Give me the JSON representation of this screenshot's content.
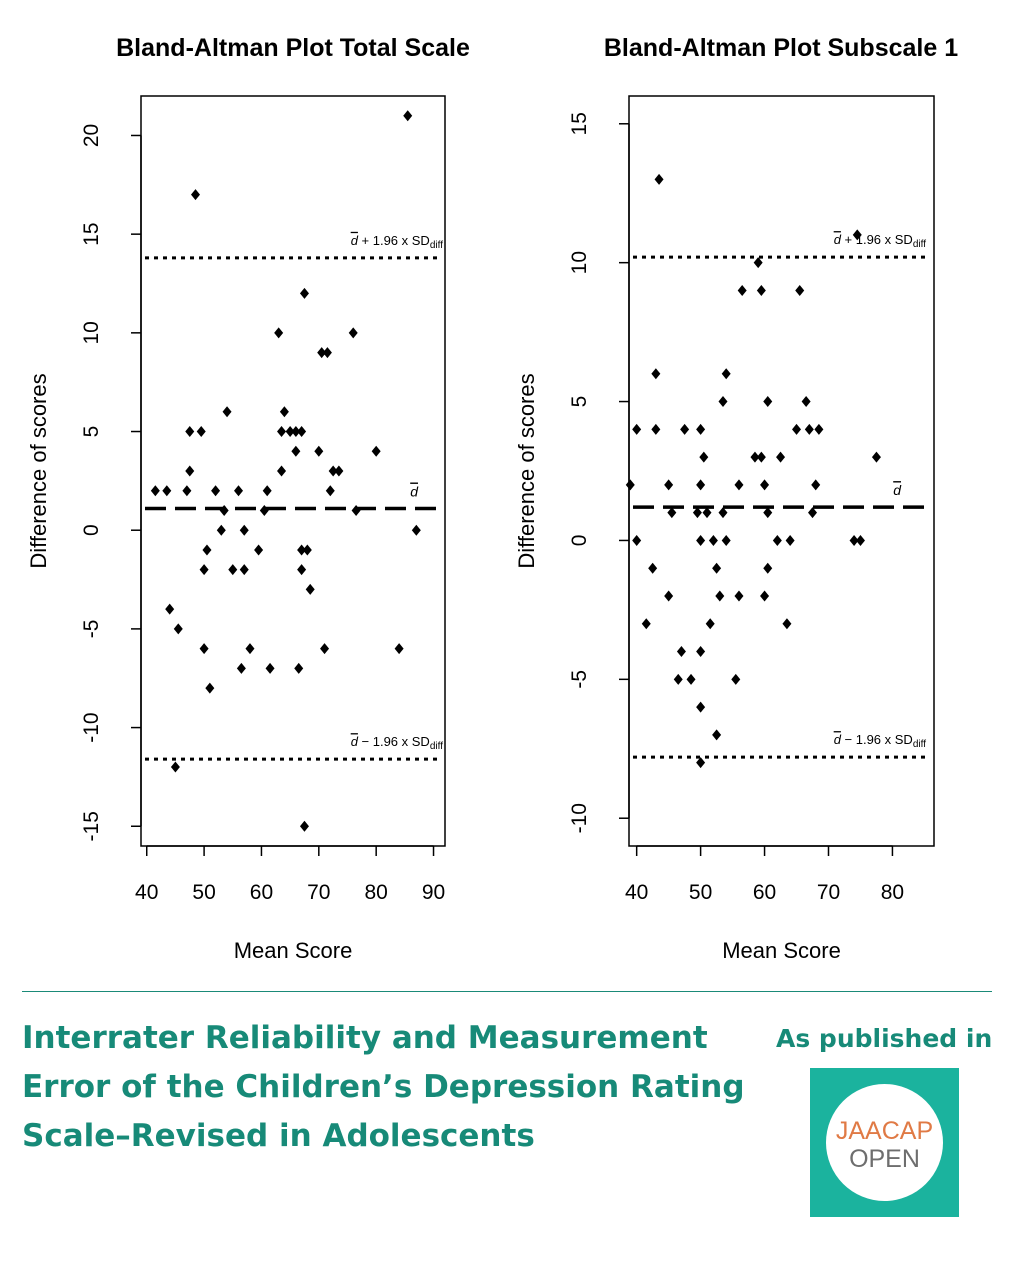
{
  "chart_data": [
    {
      "type": "scatter",
      "title": "Bland-Altman Plot Total Scale",
      "xlabel": "Mean Score",
      "ylabel": "Difference of scores",
      "xlim": [
        39,
        92
      ],
      "ylim": [
        -16,
        22
      ],
      "xticks": [
        "40",
        "50",
        "60",
        "70",
        "80",
        "90"
      ],
      "yticks": [
        "-15",
        "-10",
        "-5",
        "0",
        "5",
        "10",
        "15",
        "20"
      ],
      "grid": false,
      "mean_line": {
        "value": 1.1,
        "label": "d"
      },
      "upper_loa": {
        "value": 13.8,
        "label_prefix": "d",
        "label_mid": " + 1.96 x SD",
        "label_sub": "diff"
      },
      "lower_loa": {
        "value": -11.6,
        "label_prefix": "d",
        "label_mid": " − 1.96 x SD",
        "label_sub": "diff"
      },
      "points": [
        [
          41.5,
          2
        ],
        [
          43.5,
          2
        ],
        [
          44,
          -4
        ],
        [
          45,
          -12
        ],
        [
          45.5,
          -5
        ],
        [
          47,
          2
        ],
        [
          47.5,
          3
        ],
        [
          47.5,
          5
        ],
        [
          48.5,
          17
        ],
        [
          49.5,
          5
        ],
        [
          50,
          -2
        ],
        [
          50,
          -6
        ],
        [
          50.5,
          -1
        ],
        [
          51,
          -8
        ],
        [
          52,
          2
        ],
        [
          53,
          0
        ],
        [
          53.5,
          1
        ],
        [
          54,
          6
        ],
        [
          55,
          -2
        ],
        [
          56,
          2
        ],
        [
          56.5,
          -7
        ],
        [
          57,
          -2
        ],
        [
          57,
          0
        ],
        [
          58,
          -6
        ],
        [
          59.5,
          -1
        ],
        [
          60.5,
          1
        ],
        [
          61,
          2
        ],
        [
          61.5,
          -7
        ],
        [
          63,
          10
        ],
        [
          63.5,
          3
        ],
        [
          63.5,
          5
        ],
        [
          64,
          6
        ],
        [
          65,
          5
        ],
        [
          66,
          5
        ],
        [
          66,
          4
        ],
        [
          66.5,
          -7
        ],
        [
          67,
          5
        ],
        [
          67,
          -1
        ],
        [
          67,
          -2
        ],
        [
          67.5,
          12
        ],
        [
          67.5,
          -15
        ],
        [
          68,
          -1
        ],
        [
          68.5,
          -3
        ],
        [
          70,
          4
        ],
        [
          70.5,
          9
        ],
        [
          71,
          -6
        ],
        [
          71.5,
          9
        ],
        [
          72,
          2
        ],
        [
          72.5,
          3
        ],
        [
          73.5,
          3
        ],
        [
          76,
          10
        ],
        [
          76.5,
          1
        ],
        [
          80,
          4
        ],
        [
          84,
          -6
        ],
        [
          85.5,
          21
        ],
        [
          87,
          0
        ]
      ]
    },
    {
      "type": "scatter",
      "title": "Bland-Altman Plot Subscale 1",
      "xlabel": "Mean Score",
      "ylabel": "Difference of scores",
      "xlim": [
        38.8,
        86.5
      ],
      "ylim": [
        -11,
        16
      ],
      "xticks": [
        "40",
        "50",
        "60",
        "70",
        "80"
      ],
      "yticks": [
        "-10",
        "-5",
        "0",
        "5",
        "10",
        "15"
      ],
      "grid": false,
      "mean_line": {
        "value": 1.2,
        "label": "d"
      },
      "upper_loa": {
        "value": 10.2,
        "label_prefix": "d",
        "label_mid": " + 1.96 x SD",
        "label_sub": "diff"
      },
      "lower_loa": {
        "value": -7.8,
        "label_prefix": "d",
        "label_mid": " − 1.96 x SD",
        "label_sub": "diff"
      },
      "points": [
        [
          39,
          2
        ],
        [
          40,
          4
        ],
        [
          40,
          0
        ],
        [
          41.5,
          -3
        ],
        [
          42.5,
          -1
        ],
        [
          43,
          6
        ],
        [
          43,
          4
        ],
        [
          43.5,
          13
        ],
        [
          45,
          2
        ],
        [
          45,
          -2
        ],
        [
          45.5,
          1
        ],
        [
          46.5,
          -5
        ],
        [
          47,
          -4
        ],
        [
          47.5,
          4
        ],
        [
          48.5,
          -5
        ],
        [
          49.5,
          1
        ],
        [
          50,
          4
        ],
        [
          50,
          2
        ],
        [
          50,
          -6
        ],
        [
          50,
          -4
        ],
        [
          50,
          0
        ],
        [
          50,
          -8
        ],
        [
          50.5,
          3
        ],
        [
          51,
          1
        ],
        [
          51.5,
          -3
        ],
        [
          52,
          0
        ],
        [
          52.5,
          -7
        ],
        [
          52.5,
          -1
        ],
        [
          53,
          -2
        ],
        [
          53.5,
          5
        ],
        [
          53.5,
          1
        ],
        [
          54,
          6
        ],
        [
          54,
          0
        ],
        [
          55.5,
          -5
        ],
        [
          56,
          -2
        ],
        [
          56,
          2
        ],
        [
          56.5,
          9
        ],
        [
          58.5,
          3
        ],
        [
          59,
          10
        ],
        [
          59.5,
          9
        ],
        [
          59.5,
          3
        ],
        [
          60,
          -2
        ],
        [
          60,
          2
        ],
        [
          60.5,
          1
        ],
        [
          60.5,
          5
        ],
        [
          60.5,
          -1
        ],
        [
          62,
          0
        ],
        [
          62.5,
          3
        ],
        [
          63.5,
          -3
        ],
        [
          64,
          0
        ],
        [
          65,
          4
        ],
        [
          65.5,
          9
        ],
        [
          66.5,
          5
        ],
        [
          67,
          4
        ],
        [
          67.5,
          1
        ],
        [
          68,
          2
        ],
        [
          68.5,
          4
        ],
        [
          74,
          0
        ],
        [
          74.5,
          11
        ],
        [
          75,
          0
        ],
        [
          77.5,
          3
        ]
      ]
    }
  ],
  "footer": {
    "title": "Interrater Reliability and Measurement Error of the Children’s Depression Rating Scale–Revised in Adolescents",
    "published_label": "As published in",
    "logo": {
      "line1": "JAACAP",
      "line2": "OPEN",
      "bg_color": "#1bb39e",
      "line1_color": "#e07a45",
      "line2_color": "#6e6e6e"
    }
  },
  "colors": {
    "accent": "#178a78",
    "ink": "#000000"
  }
}
